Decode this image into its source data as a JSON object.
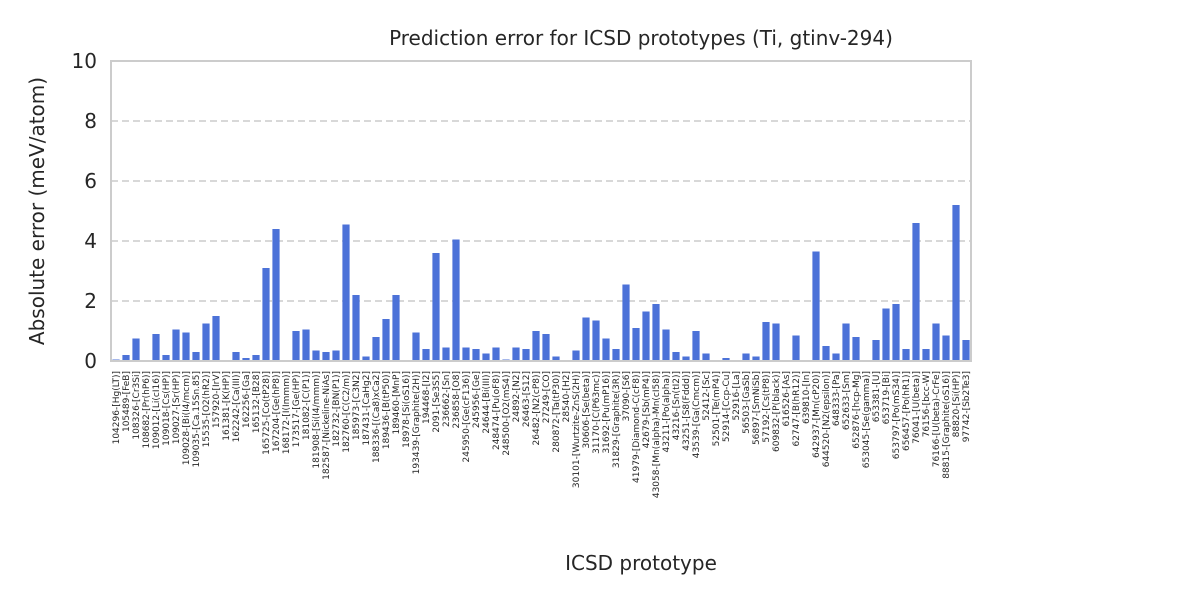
{
  "chart_data": {
    "type": "bar",
    "title": "Prediction error for ICSD prototypes (Ti, gtinv-294)",
    "xlabel": "ICSD prototype",
    "ylabel": "Absolute error (meV/atom)",
    "ylim": [
      0,
      10
    ],
    "yticks": [
      0,
      2,
      4,
      6,
      8,
      10
    ],
    "grid": "y",
    "bar_color": "#4c72d8",
    "categories": [
      "104296-[Hg(LT)]",
      "105489-[FeB]",
      "108326-[Cr3Si]",
      "108682-[Pr(hP6)]",
      "109012-[Li(cI16)]",
      "109018-[Cs(HP)]",
      "109027-[Sr(HP)]",
      "109028-[Bi(I4/mcm)]",
      "109035-[Ca.15Sn.85]",
      "15535-[O2(hR2)]",
      "157920-[IrV]",
      "161381-[K(HP)]",
      "162242-[Ca(III)]",
      "162256-[Ga]",
      "165132-[B28]",
      "165725-[Co(tP28)]",
      "167204-[Ge(hP8)]",
      "168172-[I(Immm)]",
      "173517-[Ge(HP)]",
      "181082-[C(P1)]",
      "181908-[Si(I4/mmm)]",
      "182587-[Nickeline-NiAs]",
      "182732-[BN(P1)]",
      "182760-[C(C2/m)]",
      "185973-[C3N2]",
      "187431-[CaHg2]",
      "188336-[(Ca8)xCa2]",
      "189436-[B(tP50)]",
      "189460-[MnP]",
      "18978-[Si(oS16)]",
      "193439-[Graphite(2H)]",
      "194468-[I2]",
      "2091-[Se3S5]",
      "236662-[Sn]",
      "236858-[O8]",
      "245950-[Ge(cF136)]",
      "245956-[Ge]",
      "24644-[Bi(III)]",
      "248474-[Pu(oF8)]",
      "248500-[O2(mS4)]",
      "24892-[N2]",
      "26463-[S12]",
      "26482-[N2(cP8)]",
      "27249-[CO]",
      "280872-[Ta(tP30)]",
      "28540-[H2]",
      "30101-[Wurtzite-ZnS(2H)]",
      "30606-[Se(beta)]",
      "31170-[C(P63mc)]",
      "31692-[Pu(mP16)]",
      "31829-[Graphite(3R)]",
      "37090-[S6]",
      "41979-[Diamond-C(cF8)]",
      "42679-[Sb(mP4)]",
      "43058-[Mn(alpha)-Mn(cI58)]",
      "43211-[Po(alpha)]",
      "43216-[Sn(tI2)]",
      "43251-[S8(Fddd)]",
      "43539-[Ga(Cmcm)]",
      "52412-[Sc]",
      "52501-[Te(mP4)]",
      "52914-[Ccp-Cu]",
      "52916-[La]",
      "56503-[GaSb]",
      "56897-[SmNiSb]",
      "57192-[Cs(tP8)]",
      "609832-[P(black)]",
      "616526-[As]",
      "62747-[B(hR12)]",
      "639810-[In]",
      "642937-[Mn(cP20)]",
      "644520-[N2(epsilon)]",
      "648333-[Pa]",
      "652633-[Sm]",
      "652876-[hcp-Mg]",
      "653045-[Se(gamma)]",
      "653381-[U]",
      "653719-[Bi]",
      "653797-[Po(mS34)]",
      "656457-[Po(hR1)]",
      "76041-[U(beta)]",
      "76156-[bcc-W]",
      "76166-[U(beta)-CrFe]",
      "88815-[Graphite(oS16)]",
      "88820-[Si(HP)]",
      "97742-[Sb2Te3]"
    ],
    "values": [
      0.05,
      0.2,
      0.75,
      0.0,
      0.9,
      0.2,
      1.05,
      0.95,
      0.3,
      1.25,
      1.5,
      0.0,
      0.3,
      0.1,
      0.2,
      3.1,
      4.4,
      0.0,
      1.0,
      1.05,
      0.35,
      0.3,
      0.35,
      4.55,
      2.2,
      0.15,
      0.8,
      1.4,
      2.2,
      0.0,
      0.95,
      0.4,
      3.6,
      0.45,
      4.05,
      0.45,
      0.4,
      0.25,
      0.45,
      0.05,
      0.45,
      0.4,
      1.0,
      0.9,
      0.15,
      0.0,
      0.35,
      1.45,
      1.35,
      0.75,
      0.4,
      2.55,
      1.1,
      1.65,
      1.9,
      1.05,
      0.3,
      0.15,
      1.0,
      0.25,
      0.0,
      0.1,
      0.0,
      0.25,
      0.15,
      1.3,
      1.25,
      0.0,
      0.85,
      0.0,
      3.65,
      0.5,
      0.25,
      1.25,
      0.8,
      0.0,
      0.7,
      1.75,
      1.9,
      0.4,
      4.6,
      0.4,
      1.25,
      0.85,
      5.2,
      0.7
    ]
  }
}
